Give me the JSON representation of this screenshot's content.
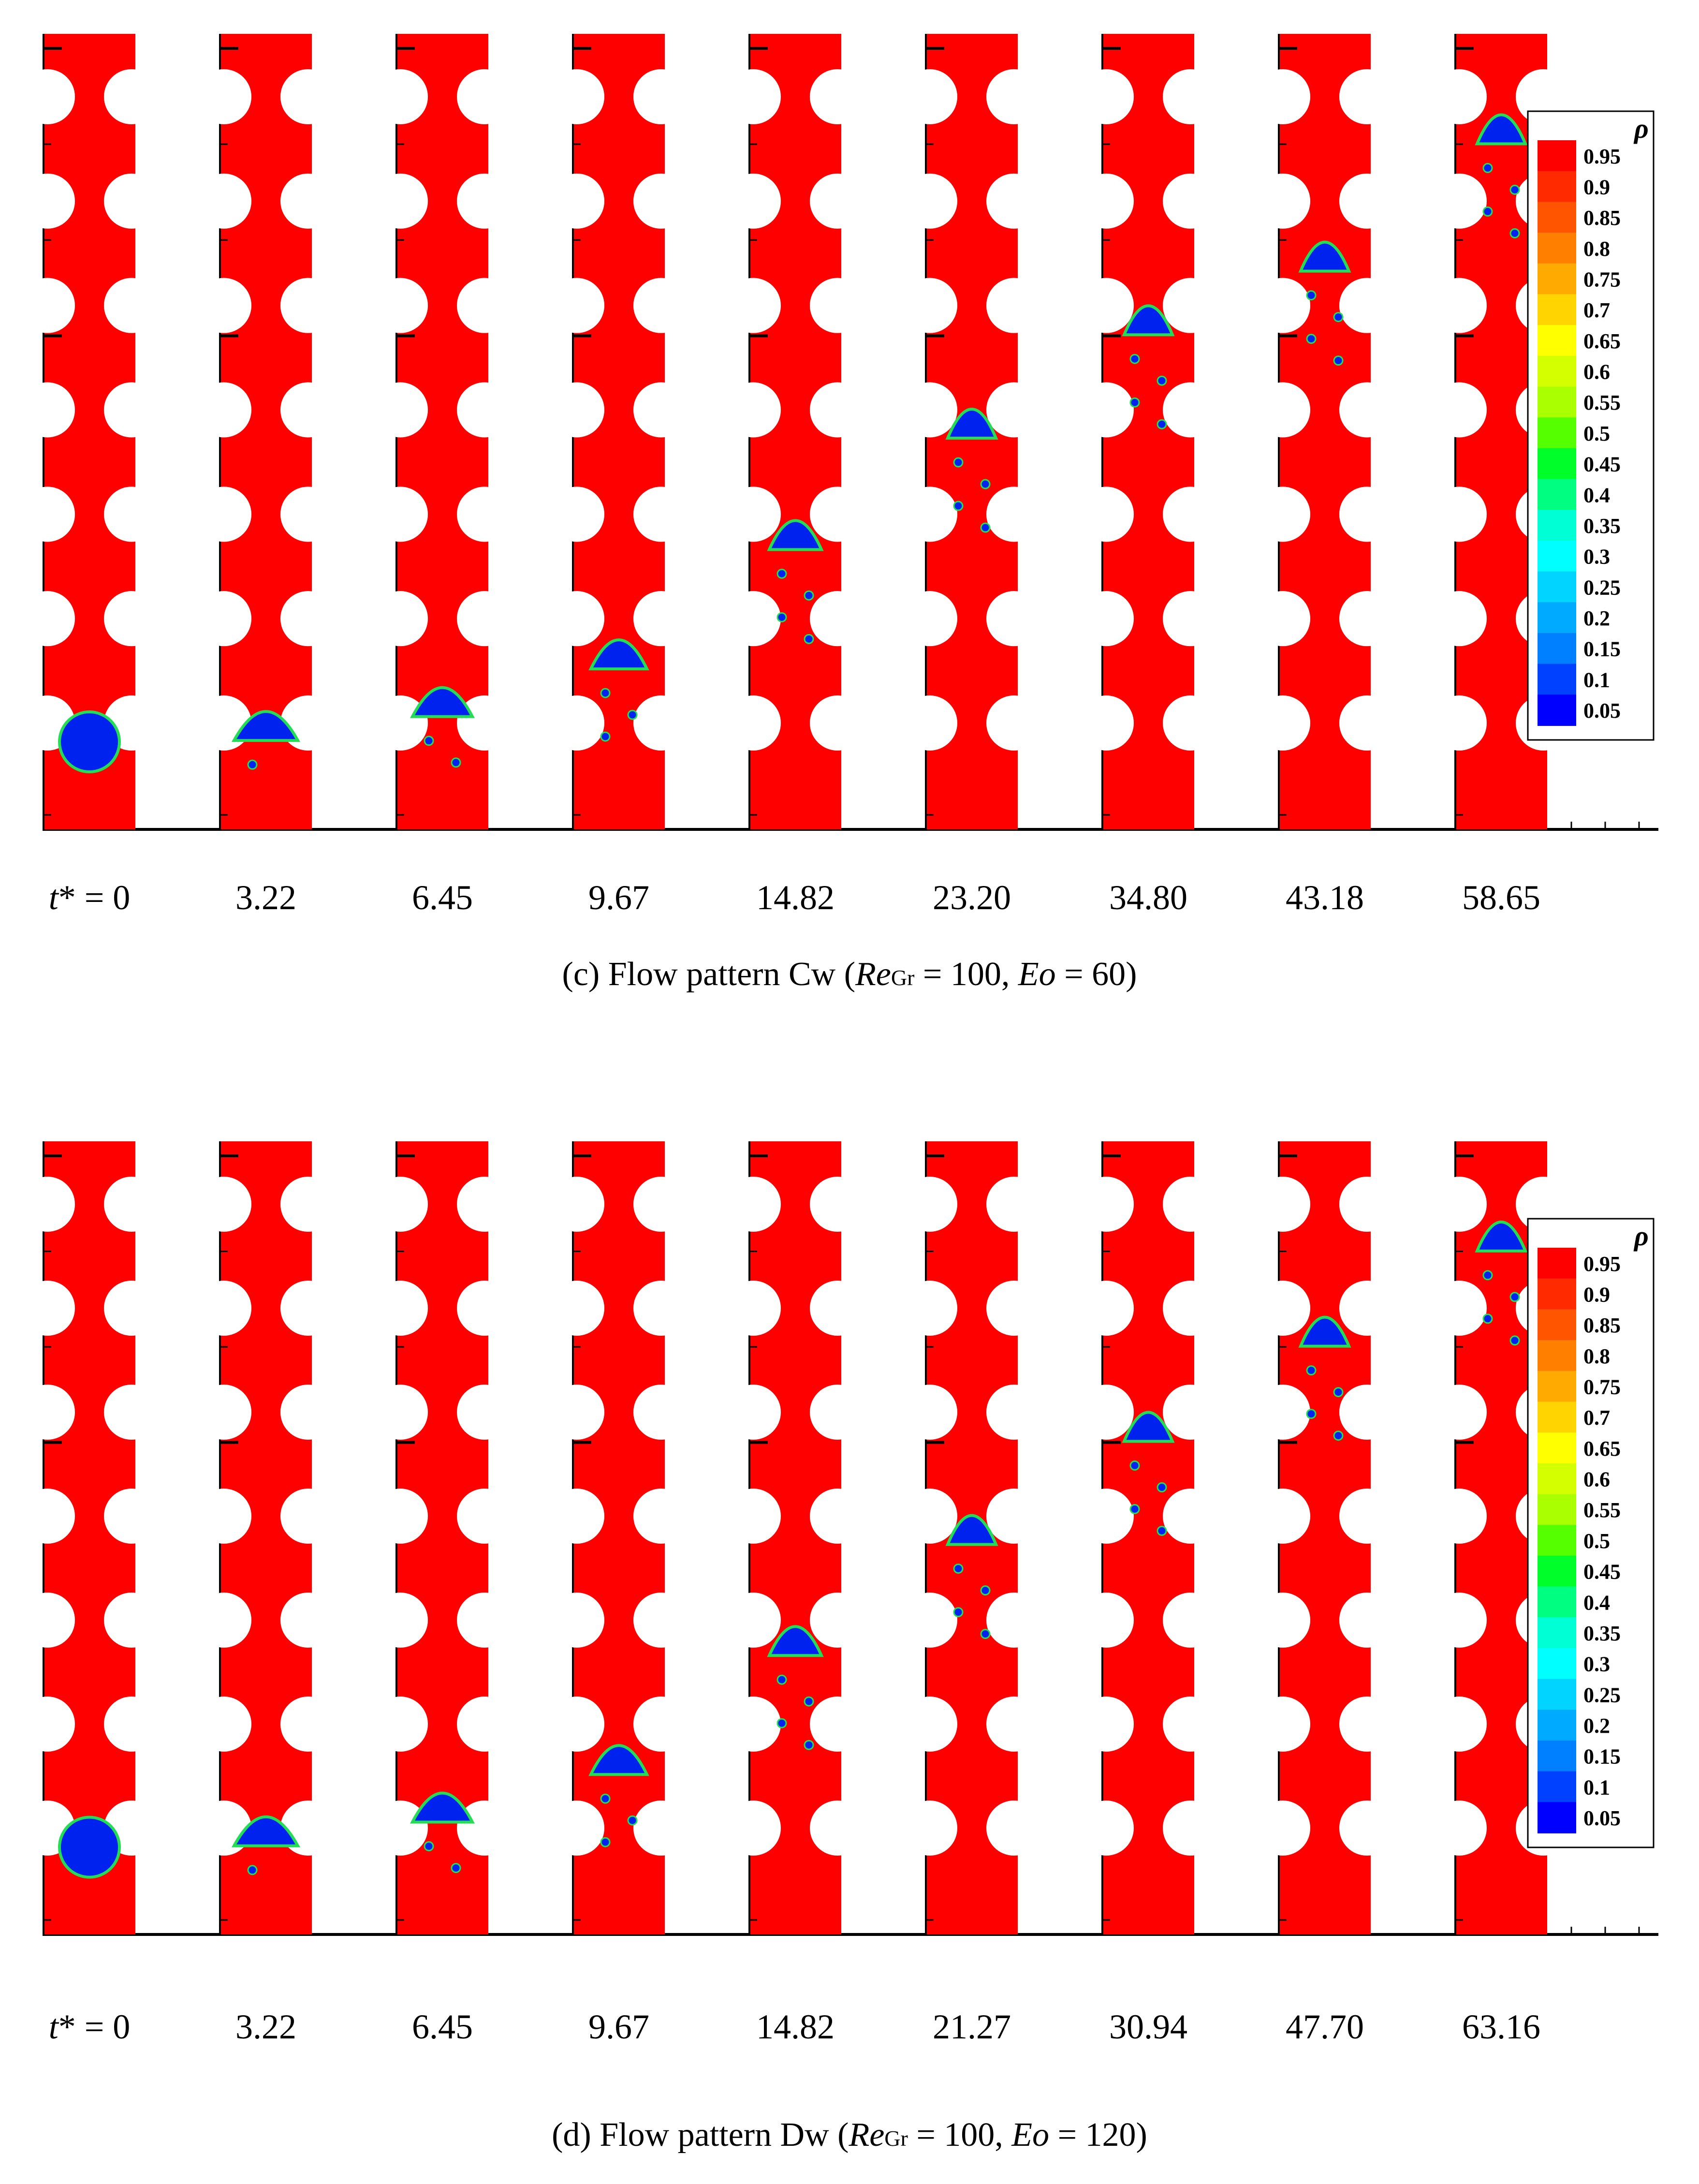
{
  "colorbar": {
    "title": "ρ",
    "levels": [
      "0.95",
      "0.9",
      "0.85",
      "0.8",
      "0.75",
      "0.7",
      "0.65",
      "0.6",
      "0.55",
      "0.5",
      "0.45",
      "0.4",
      "0.35",
      "0.3",
      "0.25",
      "0.2",
      "0.15",
      "0.1",
      "0.05"
    ],
    "colors": [
      "#ff0000",
      "#ff2a00",
      "#ff5500",
      "#ff8000",
      "#ffaa00",
      "#ffd400",
      "#ffff00",
      "#d4ff00",
      "#aaff00",
      "#55ff00",
      "#00ff2a",
      "#00ff80",
      "#00ffd4",
      "#00ffff",
      "#00d4ff",
      "#00aaff",
      "#0080ff",
      "#0040ff",
      "#0000ff"
    ]
  },
  "colors": {
    "liquid": "#ff0000",
    "gas": "#0022ee",
    "interface": "#22dd55",
    "obstacle": "#ffffff"
  },
  "panel_c": {
    "time_prefix": "t* = 0",
    "times": [
      "t* = 0",
      "3.22",
      "6.45",
      "9.67",
      "14.82",
      "23.20",
      "34.80",
      "43.18",
      "58.65"
    ],
    "caption": {
      "pre": "(c) Flow pattern Cw (",
      "re": "Re",
      "sub": "Gr",
      "mid": " = 100, ",
      "eo": "Eo",
      "post": " = 60)"
    },
    "bubble_heights": [
      0.11,
      0.13,
      0.16,
      0.22,
      0.37,
      0.51,
      0.64,
      0.72,
      0.88
    ]
  },
  "panel_d": {
    "times": [
      "t* = 0",
      "3.22",
      "6.45",
      "9.67",
      "14.82",
      "21.27",
      "30.94",
      "47.70",
      "63.16"
    ],
    "caption": {
      "pre": "(d) Flow pattern Dw (",
      "re": "Re",
      "sub": "Gr",
      "mid": " = 100, ",
      "eo": "Eo",
      "post": " = 120)"
    },
    "bubble_heights": [
      0.11,
      0.13,
      0.16,
      0.22,
      0.37,
      0.51,
      0.64,
      0.76,
      0.88
    ]
  }
}
